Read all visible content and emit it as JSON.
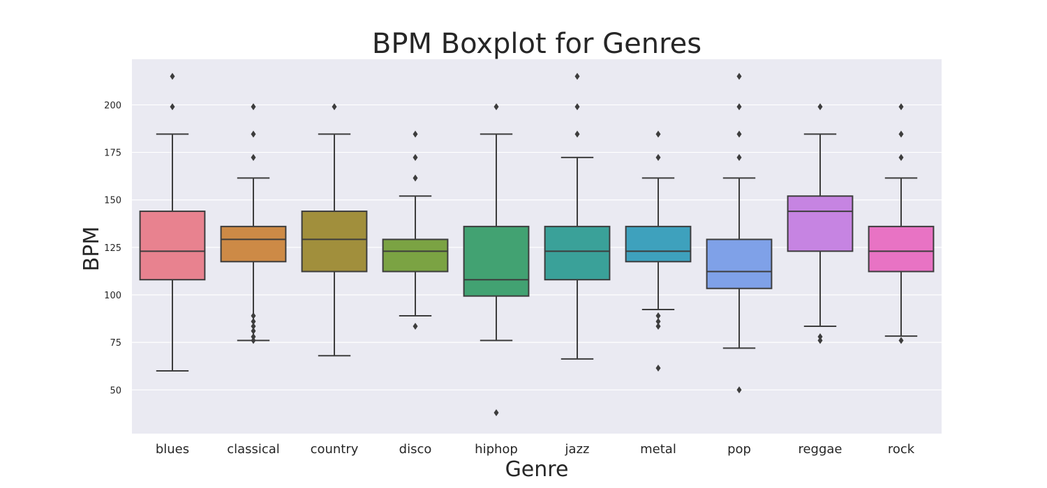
{
  "chart_data": {
    "type": "boxplot",
    "title": "BPM Boxplot for Genres",
    "xlabel": "Genre",
    "ylabel": "BPM",
    "ylim": [
      27,
      224
    ],
    "yticks": [
      50,
      75,
      100,
      125,
      150,
      175,
      200
    ],
    "grid": true,
    "background_color": "#eaeaf2",
    "line_color": "#3d3d3d",
    "categories": [
      "blues",
      "classical",
      "country",
      "disco",
      "hiphop",
      "jazz",
      "metal",
      "pop",
      "reggae",
      "rock"
    ],
    "boxes": [
      {
        "genre": "blues",
        "color": "#e8828f",
        "whisker_low": 60,
        "q1": 108,
        "median": 123,
        "q3": 144,
        "whisker_high": 184.6,
        "outliers": [
          199,
          215
        ]
      },
      {
        "genre": "classical",
        "color": "#cd8a46",
        "whisker_low": 76,
        "q1": 117.5,
        "median": 129.2,
        "q3": 136,
        "whisker_high": 161.5,
        "outliers": [
          172.3,
          184.6,
          199,
          89,
          86,
          83.5,
          81,
          78,
          76
        ]
      },
      {
        "genre": "country",
        "color": "#a18f3c",
        "whisker_low": 68,
        "q1": 112.3,
        "median": 129.2,
        "q3": 144,
        "whisker_high": 184.6,
        "outliers": [
          199
        ]
      },
      {
        "genre": "disco",
        "color": "#7ba343",
        "whisker_low": 89,
        "q1": 112.3,
        "median": 123,
        "q3": 129.2,
        "whisker_high": 152,
        "outliers": [
          161.5,
          172.3,
          184.6,
          83.5
        ]
      },
      {
        "genre": "hiphop",
        "color": "#42a272",
        "whisker_low": 76,
        "q1": 99.4,
        "median": 108,
        "q3": 136,
        "whisker_high": 184.6,
        "outliers": [
          199,
          38
        ]
      },
      {
        "genre": "jazz",
        "color": "#3aa199",
        "whisker_low": 66.3,
        "q1": 108,
        "median": 123,
        "q3": 136,
        "whisker_high": 172.3,
        "outliers": [
          184.6,
          199,
          215
        ]
      },
      {
        "genre": "metal",
        "color": "#3ea1bd",
        "whisker_low": 92.3,
        "q1": 117.5,
        "median": 123,
        "q3": 136,
        "whisker_high": 161.5,
        "outliers": [
          172.3,
          184.6,
          89,
          86,
          83.5,
          61.5
        ]
      },
      {
        "genre": "pop",
        "color": "#7fa1e8",
        "whisker_low": 72,
        "q1": 103.4,
        "median": 112.3,
        "q3": 129.2,
        "whisker_high": 161.5,
        "outliers": [
          172.3,
          184.6,
          199,
          215,
          50
        ]
      },
      {
        "genre": "reggae",
        "color": "#c684e2",
        "whisker_low": 83.5,
        "q1": 123,
        "median": 144,
        "q3": 152,
        "whisker_high": 184.6,
        "outliers": [
          199,
          78,
          76
        ]
      },
      {
        "genre": "rock",
        "color": "#e873c4",
        "whisker_low": 78.3,
        "q1": 112.3,
        "median": 123,
        "q3": 136,
        "whisker_high": 161.5,
        "outliers": [
          172.3,
          184.6,
          199,
          76
        ]
      }
    ]
  }
}
